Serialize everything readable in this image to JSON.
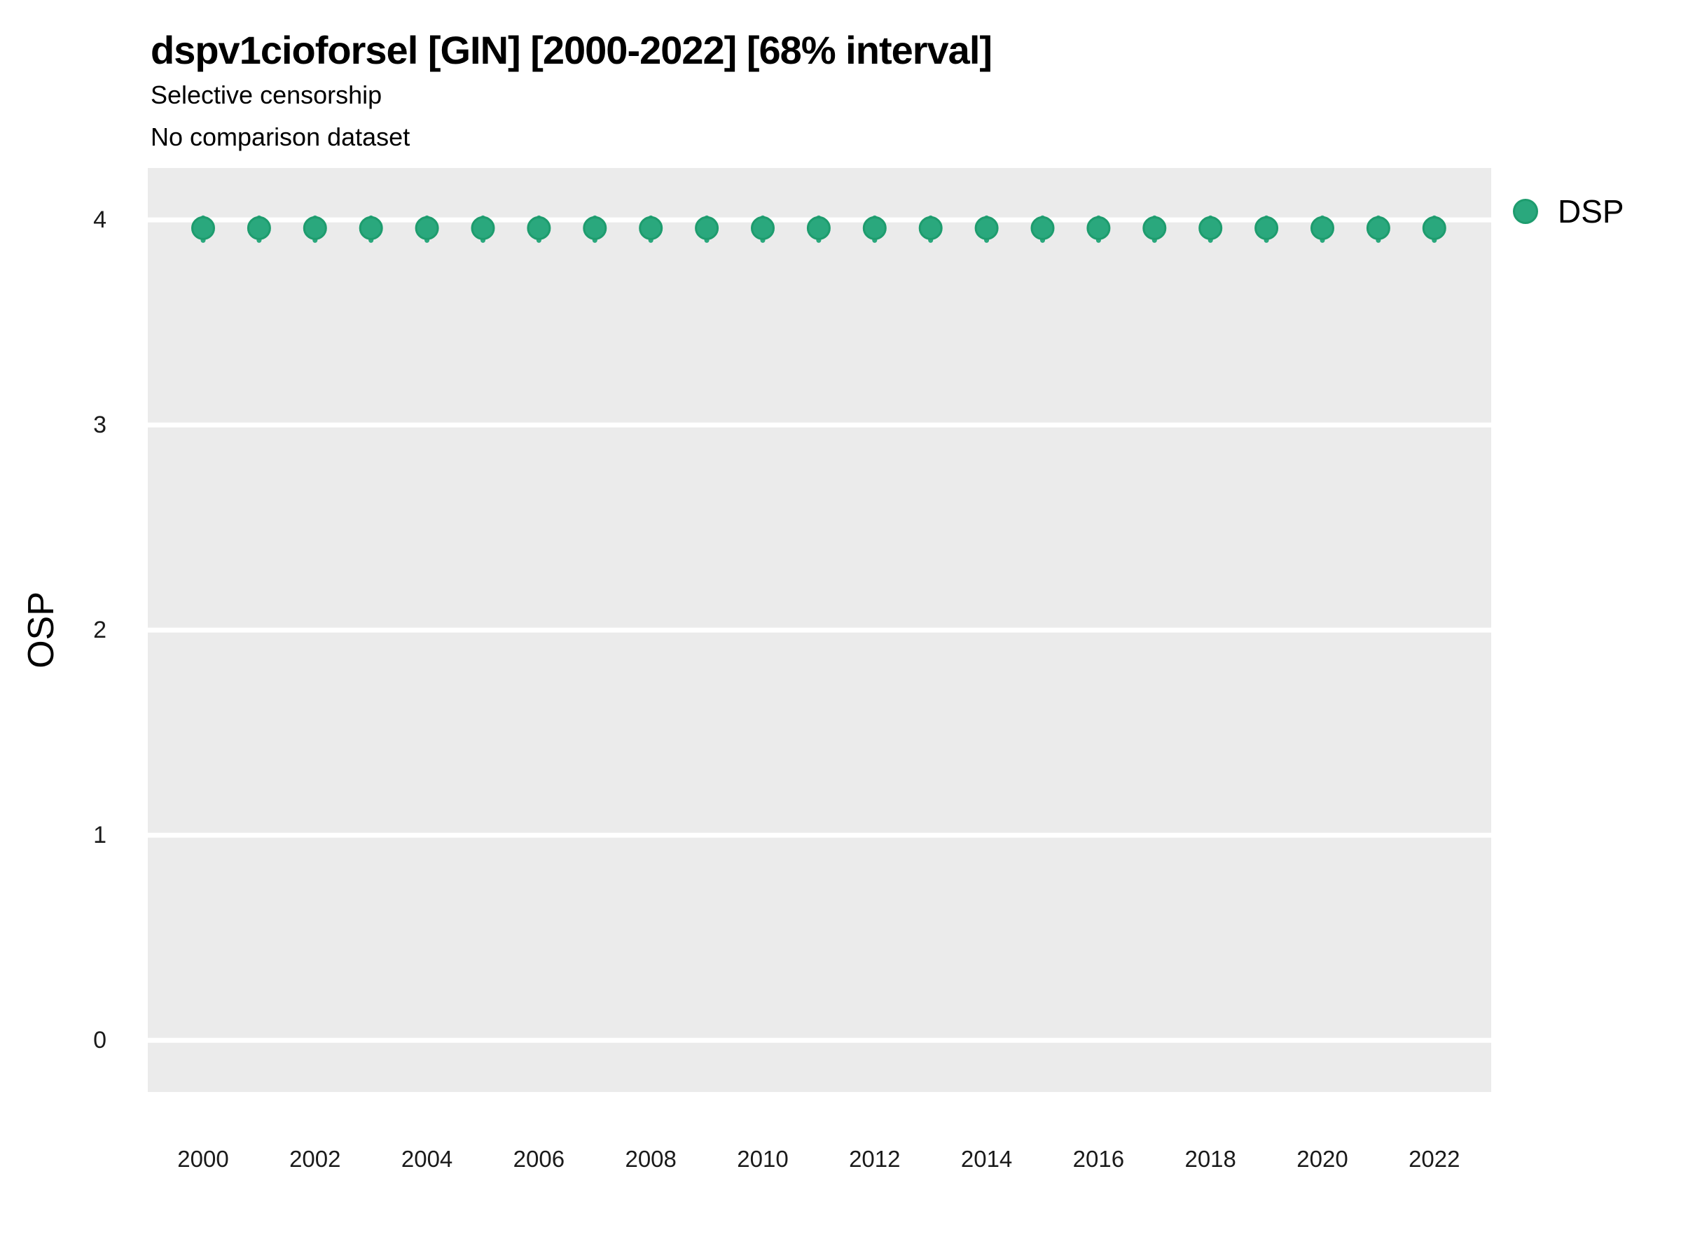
{
  "header": {
    "title": "dspv1cioforsel [GIN] [2000-2022] [68% interval]",
    "subtitle_line1": "Selective censorship",
    "subtitle_line2": "No comparison dataset"
  },
  "axes": {
    "y_label": "OSP",
    "y_tick_labels": [
      "4",
      "3",
      "2",
      "1",
      "0"
    ],
    "y_tick_values": [
      4,
      3,
      2,
      1,
      0
    ],
    "x_tick_labels": [
      "2000",
      "2002",
      "2004",
      "2006",
      "2008",
      "2010",
      "2012",
      "2014",
      "2016",
      "2018",
      "2020",
      "2022"
    ],
    "x_tick_values": [
      2000,
      2002,
      2004,
      2006,
      2008,
      2010,
      2012,
      2014,
      2016,
      2018,
      2020,
      2022
    ]
  },
  "legend": {
    "items": [
      {
        "label": "DSP",
        "marker": "circle-icon"
      }
    ]
  },
  "colors": {
    "panel_bg": "#ebebeb",
    "grid": "#ffffff",
    "point_fill": "#2aa87d",
    "point_stroke": "#1e9c6e",
    "title_text": "#000000",
    "tick_text": "#1a1a1a"
  },
  "chart_data": {
    "type": "scatter",
    "title": "dspv1cioforsel [GIN] [2000-2022] [68% interval]",
    "subtitle": [
      "Selective censorship",
      "No comparison dataset"
    ],
    "xlabel": "",
    "ylabel": "OSP",
    "interval_level": "68%",
    "legend_position": "right",
    "grid": true,
    "ylim": [
      -0.25,
      4.25
    ],
    "y_ticks": [
      0,
      1,
      2,
      3,
      4
    ],
    "x_ticks": [
      2000,
      2002,
      2004,
      2006,
      2008,
      2010,
      2012,
      2014,
      2016,
      2018,
      2020,
      2022
    ],
    "x": [
      2000,
      2001,
      2002,
      2003,
      2004,
      2005,
      2006,
      2007,
      2008,
      2009,
      2010,
      2011,
      2012,
      2013,
      2014,
      2015,
      2016,
      2017,
      2018,
      2019,
      2020,
      2021,
      2022
    ],
    "series": [
      {
        "name": "DSP",
        "values": [
          3.96,
          3.96,
          3.96,
          3.96,
          3.96,
          3.96,
          3.96,
          3.96,
          3.96,
          3.96,
          3.96,
          3.96,
          3.96,
          3.96,
          3.96,
          3.96,
          3.96,
          3.96,
          3.96,
          3.96,
          3.96,
          3.96,
          3.96
        ],
        "interval_low": [
          3.9,
          3.9,
          3.9,
          3.9,
          3.9,
          3.9,
          3.9,
          3.9,
          3.9,
          3.9,
          3.9,
          3.9,
          3.9,
          3.9,
          3.9,
          3.9,
          3.9,
          3.9,
          3.9,
          3.9,
          3.9,
          3.9,
          3.9
        ],
        "interval_high": [
          4.01,
          4.01,
          4.01,
          4.01,
          4.01,
          4.01,
          4.01,
          4.01,
          4.01,
          4.01,
          4.01,
          4.01,
          4.01,
          4.01,
          4.01,
          4.01,
          4.01,
          4.01,
          4.01,
          4.01,
          4.01,
          4.01,
          4.01
        ]
      }
    ]
  }
}
